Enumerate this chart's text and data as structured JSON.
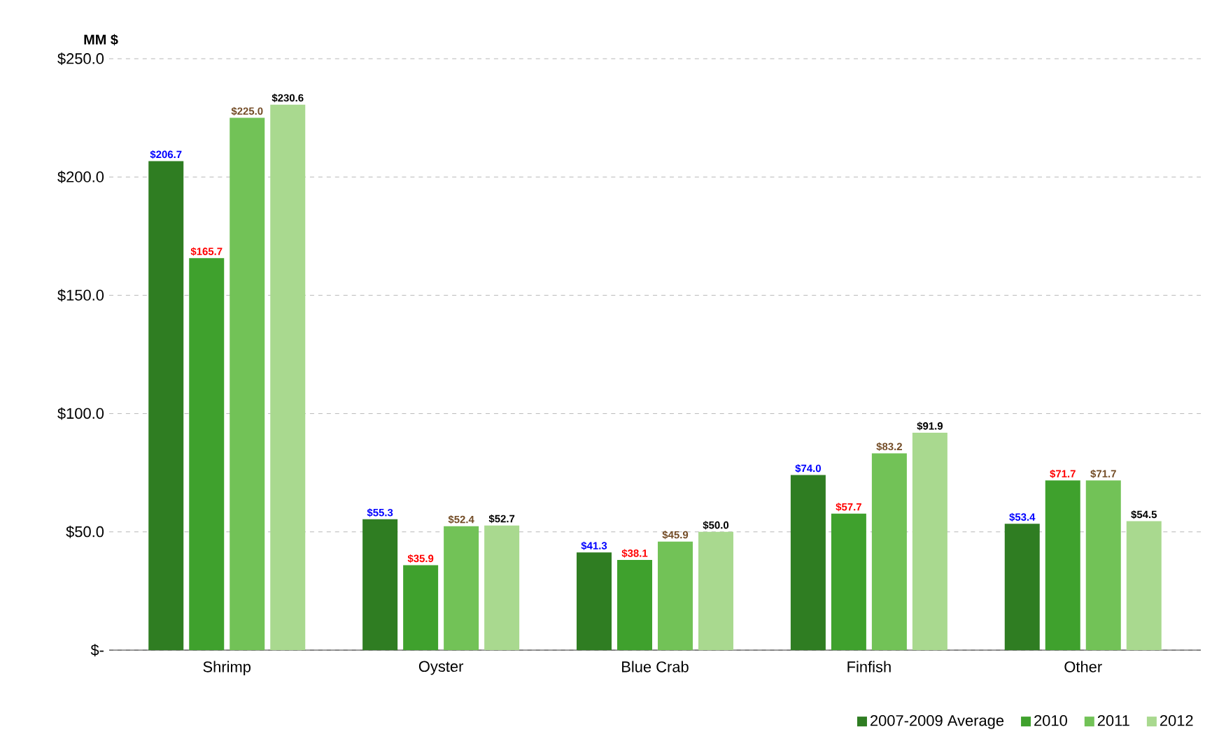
{
  "chart_data": {
    "type": "bar",
    "ylabel": "MM $",
    "categories": [
      "Shrimp",
      "Oyster",
      "Blue Crab",
      "Finfish",
      "Other"
    ],
    "series": [
      {
        "name": "2007-2009 Average",
        "color": "#2f7d22",
        "values": [
          206.7,
          55.3,
          41.3,
          74.0,
          53.4
        ],
        "value_labels": [
          "$206.7",
          "$55.3",
          "$41.3",
          "$74.0",
          "$53.4"
        ]
      },
      {
        "name": "2010",
        "color": "#3fa12d",
        "values": [
          165.7,
          35.9,
          38.1,
          57.7,
          71.7
        ],
        "value_labels": [
          "$165.7",
          "$35.9",
          "$38.1",
          "$57.7",
          "$71.7"
        ]
      },
      {
        "name": "2011",
        "color": "#72c257",
        "values": [
          225.0,
          52.4,
          45.9,
          83.2,
          71.7
        ],
        "value_labels": [
          "$225.0",
          "$52.4",
          "$45.9",
          "$83.2",
          "$71.7"
        ]
      },
      {
        "name": "2012",
        "color": "#a9d98f",
        "values": [
          230.6,
          52.7,
          50.0,
          91.9,
          54.5
        ],
        "value_labels": [
          "$230.6",
          "$52.7",
          "$50.0",
          "$91.9",
          "$54.5"
        ]
      }
    ],
    "ylim": [
      0,
      250
    ],
    "yticks": [
      {
        "value": 0,
        "label": "$-"
      },
      {
        "value": 50,
        "label": "$50.0"
      },
      {
        "value": 100,
        "label": "$100.0"
      },
      {
        "value": 150,
        "label": "$150.0"
      },
      {
        "value": 200,
        "label": "$200.0"
      },
      {
        "value": 250,
        "label": "$250.0"
      }
    ],
    "grid": "y",
    "legend": "bottom right"
  }
}
